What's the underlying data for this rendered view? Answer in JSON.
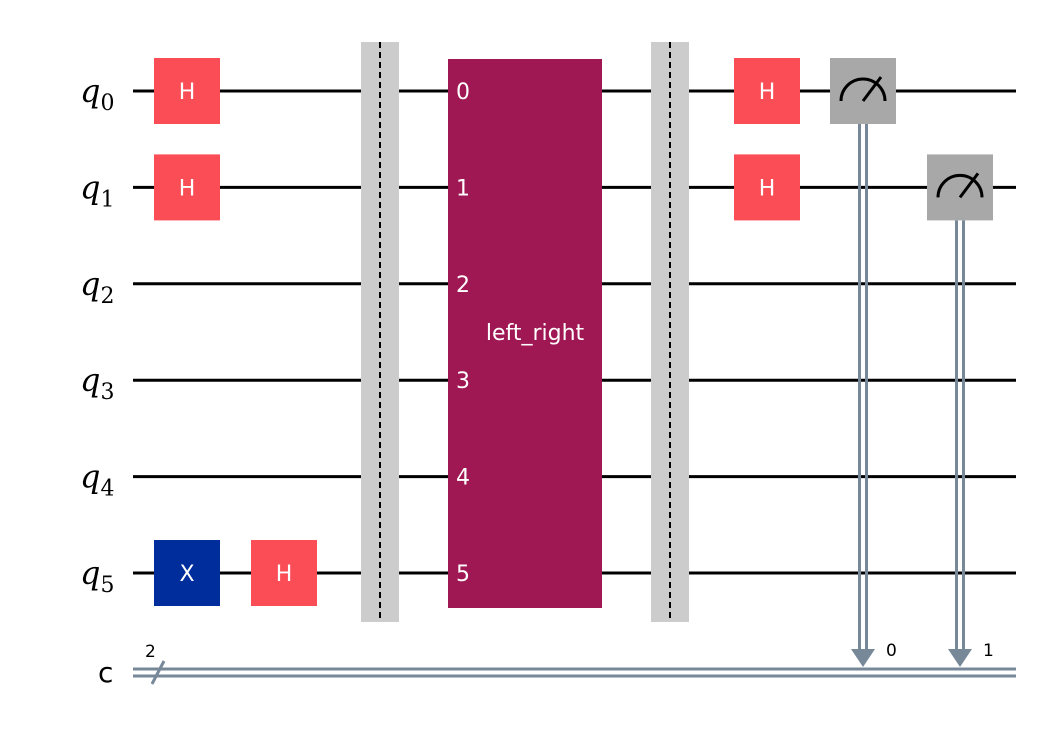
{
  "colors": {
    "wire": "#000000",
    "classical_wire": "#778899",
    "h_gate": "#fa4d56",
    "x_gate": "#002d9c",
    "custom_gate": "#9f1853",
    "measure": "#a8a8a8",
    "barrier": "#cccccc"
  },
  "qubits": [
    {
      "name": "q",
      "sub": "0"
    },
    {
      "name": "q",
      "sub": "1"
    },
    {
      "name": "q",
      "sub": "2"
    },
    {
      "name": "q",
      "sub": "3"
    },
    {
      "name": "q",
      "sub": "4"
    },
    {
      "name": "q",
      "sub": "5"
    }
  ],
  "classical": {
    "name": "c",
    "width": "2"
  },
  "gates": [
    {
      "type": "H",
      "label": "H",
      "qubit": 0,
      "col": 0
    },
    {
      "type": "H",
      "label": "H",
      "qubit": 1,
      "col": 0
    },
    {
      "type": "X",
      "label": "X",
      "qubit": 5,
      "col": 0
    },
    {
      "type": "H",
      "label": "H",
      "qubit": 5,
      "col": 1
    },
    {
      "type": "H",
      "label": "H",
      "qubit": 0,
      "col": 6
    },
    {
      "type": "H",
      "label": "H",
      "qubit": 1,
      "col": 6
    }
  ],
  "custom_gate": {
    "label": "left_right",
    "ports": [
      "0",
      "1",
      "2",
      "3",
      "4",
      "5"
    ]
  },
  "measurements": [
    {
      "qubit": 0,
      "clbit": "0",
      "col": 7
    },
    {
      "qubit": 1,
      "clbit": "1",
      "col": 8
    }
  ]
}
